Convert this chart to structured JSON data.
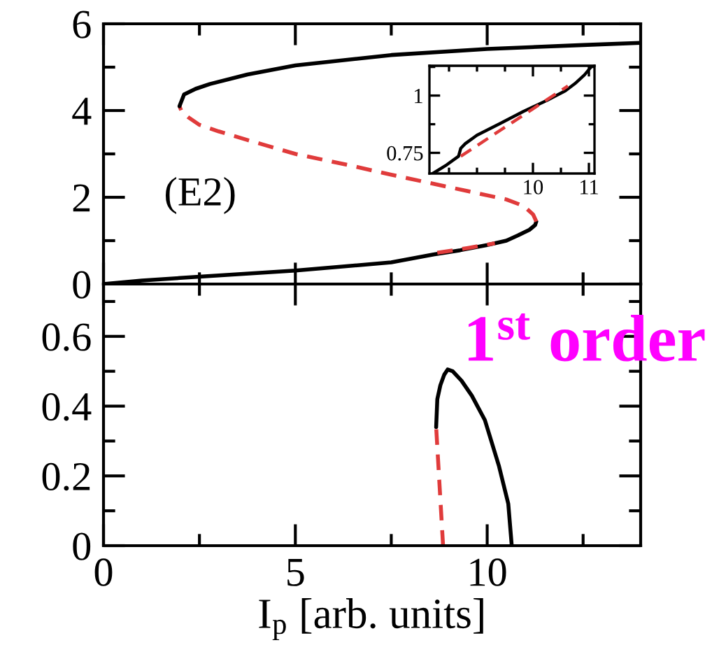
{
  "chart_data": [
    {
      "type": "line",
      "xlim": [
        0,
        14
      ],
      "ylim": [
        0,
        6
      ],
      "xticks": [
        0,
        {
          "value": 2.5,
          "label": null
        },
        5,
        {
          "value": 7.5,
          "label": null
        },
        10,
        {
          "value": 12.5,
          "label": null
        }
      ],
      "yticks": [
        0,
        {
          "value": 1,
          "label": null
        },
        2,
        {
          "value": 3,
          "label": null
        },
        4,
        {
          "value": 5,
          "label": null
        },
        6
      ],
      "tick_labels": "y",
      "series": [
        {
          "color": "#000000",
          "line_style": "solid",
          "x": [
            0,
            1,
            2.5,
            5,
            7.5,
            8.6,
            9.3,
            10,
            10.5,
            10.8,
            11.1,
            11.25,
            11.28
          ],
          "values": [
            0,
            0.08,
            0.17,
            0.31,
            0.5,
            0.68,
            0.78,
            0.9,
            1.0,
            1.12,
            1.25,
            1.36,
            1.44
          ]
        },
        {
          "color": "#e03b3b",
          "line_style": "dashed",
          "x": [
            11.28,
            11.2,
            10.95,
            10.5,
            9.5,
            8.5,
            7.5,
            6.5,
            5,
            3.75,
            3,
            2.5,
            2.2,
            2.04,
            1.98
          ],
          "values": [
            1.44,
            1.6,
            1.8,
            1.95,
            2.14,
            2.33,
            2.52,
            2.72,
            3.0,
            3.32,
            3.52,
            3.67,
            3.85,
            3.97,
            4.1
          ]
        },
        {
          "color": "#000000",
          "line_style": "solid",
          "x": [
            1.98,
            2.1,
            2.4,
            2.77,
            3.75,
            5,
            7.5,
            10,
            12.5,
            14
          ],
          "values": [
            4.1,
            4.37,
            4.5,
            4.61,
            4.83,
            5.04,
            5.28,
            5.42,
            5.51,
            5.56
          ]
        },
        {
          "color": "#e03b3b",
          "line_style": "dashed",
          "x": [
            8.7,
            9.5,
            10.2
          ],
          "values": [
            0.72,
            0.83,
            0.94
          ]
        }
      ],
      "annotations": [
        "(E2)"
      ]
    },
    {
      "type": "line",
      "xlim": [
        8.15,
        11.1
      ],
      "ylim": [
        0.66,
        1.13
      ],
      "xticks": [
        {
          "value": 8.5,
          "label": null
        },
        {
          "value": 9,
          "label": null
        },
        {
          "value": 9.5,
          "label": null
        },
        10,
        {
          "value": 10.5,
          "label": null
        },
        11
      ],
      "yticks": [
        0.75,
        {
          "value": 0.875,
          "label": null
        },
        1,
        {
          "value": 1.125,
          "label": null
        }
      ],
      "series": [
        {
          "color": "#000000",
          "line_style": "solid",
          "x": [
            8.21,
            8.46,
            8.67,
            8.71,
            8.79,
            9.0,
            9.42,
            9.83,
            10.25,
            10.58,
            10.75,
            10.92,
            11.04
          ],
          "values": [
            0.66,
            0.698,
            0.735,
            0.77,
            0.79,
            0.827,
            0.879,
            0.931,
            0.979,
            1.021,
            1.052,
            1.09,
            1.125
          ]
        },
        {
          "color": "#e03b3b",
          "line_style": "dashed",
          "x": [
            8.71,
            9.5,
            10.625
          ],
          "values": [
            0.735,
            0.862,
            1.042
          ]
        }
      ]
    },
    {
      "type": "line",
      "xlim": [
        0,
        14
      ],
      "ylim": [
        0,
        0.75
      ],
      "xticks": [
        0,
        {
          "value": 2.5,
          "label": null
        },
        5,
        {
          "value": 7.5,
          "label": null
        },
        10,
        {
          "value": 12.5,
          "label": null
        }
      ],
      "yticks": [
        0,
        {
          "value": 0.1,
          "label": null
        },
        0.2,
        {
          "value": 0.3,
          "label": null
        },
        0.4,
        {
          "value": 0.5,
          "label": null
        },
        0.6,
        {
          "value": 0.7,
          "label": null
        }
      ],
      "xlabel": "I$_{p}$ [arb. units]",
      "series": [
        {
          "color": "#e03b3b",
          "line_style": "dashed",
          "x": [
            8.85,
            8.76,
            8.67
          ],
          "values": [
            0,
            0.17,
            0.34
          ]
        },
        {
          "color": "#000000",
          "line_style": "solid",
          "x": [
            8.67,
            8.7,
            8.78,
            8.88,
            8.97,
            9.1,
            9.33,
            9.6,
            9.94,
            10.31,
            10.55,
            10.64
          ],
          "values": [
            0.34,
            0.42,
            0.46,
            0.49,
            0.505,
            0.5,
            0.473,
            0.43,
            0.36,
            0.227,
            0.12,
            0
          ]
        }
      ],
      "annotations": [
        "1$^{st}$ order"
      ]
    }
  ]
}
